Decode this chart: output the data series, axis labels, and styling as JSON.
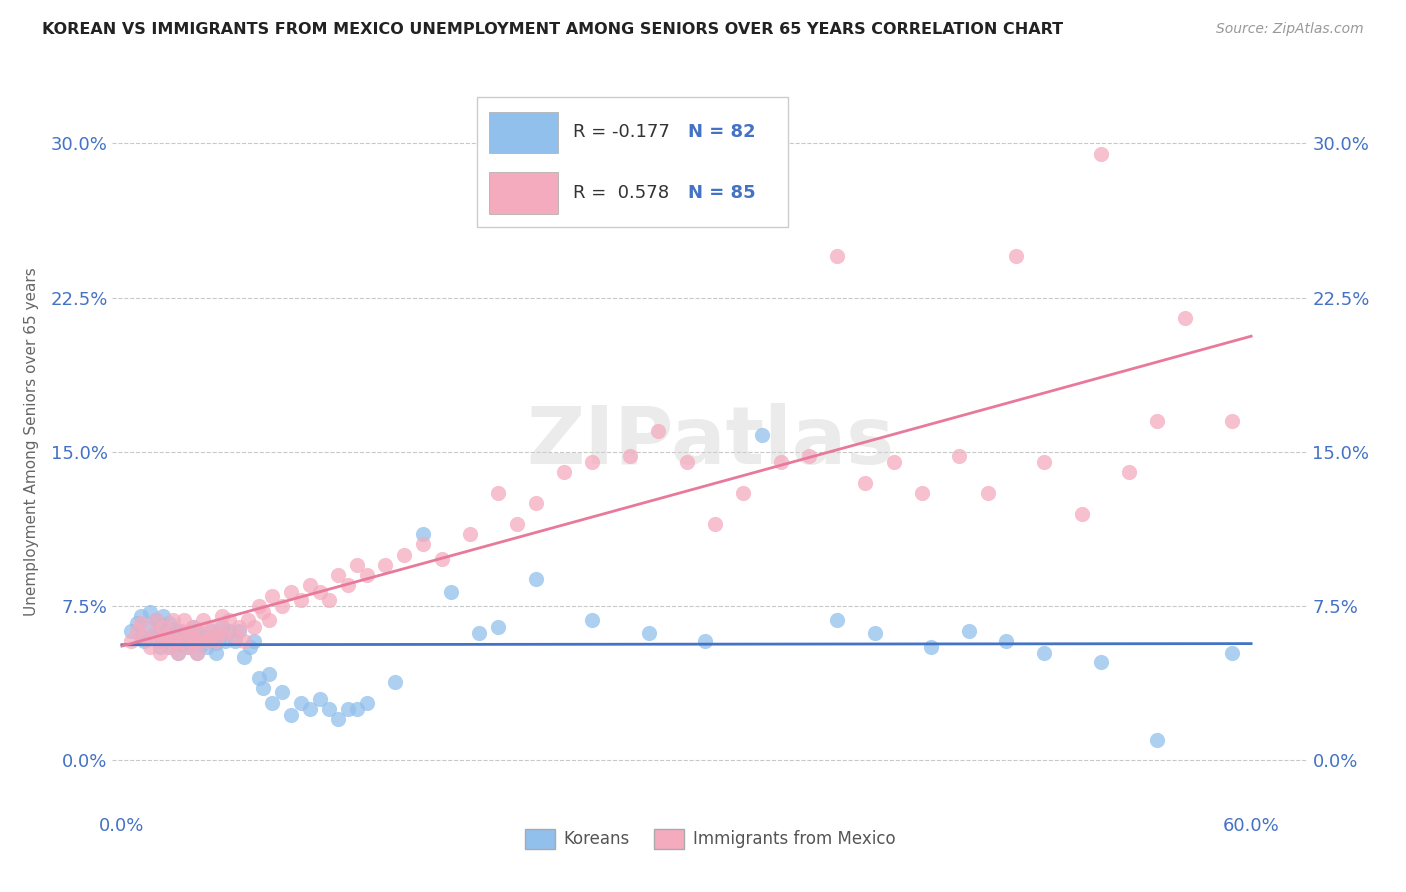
{
  "title": "KOREAN VS IMMIGRANTS FROM MEXICO UNEMPLOYMENT AMONG SENIORS OVER 65 YEARS CORRELATION CHART",
  "source": "Source: ZipAtlas.com",
  "ylabel": "Unemployment Among Seniors over 65 years",
  "xlim": [
    -0.005,
    0.63
  ],
  "ylim": [
    -0.025,
    0.335
  ],
  "yticks": [
    0.0,
    0.075,
    0.15,
    0.225,
    0.3
  ],
  "ytick_labels": [
    "0.0%",
    "7.5%",
    "15.0%",
    "22.5%",
    "30.0%"
  ],
  "xticks": [
    0.0,
    0.1,
    0.2,
    0.3,
    0.4,
    0.5,
    0.6
  ],
  "xtick_labels": [
    "0.0%",
    "",
    "",
    "",
    "",
    "",
    "60.0%"
  ],
  "korean_color": "#92C0EC",
  "mexican_color": "#F4ABBE",
  "korean_line_color": "#4472C4",
  "mexican_line_color": "#E8799A",
  "korean_R": -0.177,
  "korean_N": 82,
  "mexican_R": 0.578,
  "mexican_N": 85,
  "background_color": "#FFFFFF",
  "grid_color": "#BBBBBB",
  "watermark": "ZIPatlas",
  "legend_label_korean": "Koreans",
  "legend_label_mexican": "Immigrants from Mexico",
  "korean_x": [
    0.005,
    0.008,
    0.01,
    0.01,
    0.012,
    0.015,
    0.015,
    0.017,
    0.018,
    0.02,
    0.02,
    0.02,
    0.022,
    0.022,
    0.022,
    0.025,
    0.025,
    0.025,
    0.028,
    0.028,
    0.03,
    0.03,
    0.03,
    0.032,
    0.033,
    0.035,
    0.035,
    0.037,
    0.038,
    0.04,
    0.04,
    0.04,
    0.042,
    0.043,
    0.045,
    0.045,
    0.047,
    0.048,
    0.05,
    0.05,
    0.052,
    0.053,
    0.055,
    0.057,
    0.06,
    0.062,
    0.065,
    0.068,
    0.07,
    0.073,
    0.075,
    0.078,
    0.08,
    0.085,
    0.09,
    0.095,
    0.1,
    0.105,
    0.11,
    0.115,
    0.12,
    0.125,
    0.13,
    0.145,
    0.16,
    0.175,
    0.19,
    0.2,
    0.22,
    0.25,
    0.28,
    0.31,
    0.34,
    0.38,
    0.4,
    0.43,
    0.45,
    0.47,
    0.49,
    0.52,
    0.55,
    0.59
  ],
  "korean_y": [
    0.063,
    0.067,
    0.07,
    0.06,
    0.058,
    0.065,
    0.072,
    0.06,
    0.068,
    0.055,
    0.06,
    0.066,
    0.058,
    0.063,
    0.07,
    0.055,
    0.061,
    0.067,
    0.058,
    0.064,
    0.052,
    0.057,
    0.063,
    0.056,
    0.062,
    0.055,
    0.06,
    0.058,
    0.065,
    0.052,
    0.058,
    0.063,
    0.056,
    0.06,
    0.055,
    0.06,
    0.058,
    0.063,
    0.052,
    0.057,
    0.06,
    0.065,
    0.058,
    0.063,
    0.058,
    0.063,
    0.05,
    0.055,
    0.058,
    0.04,
    0.035,
    0.042,
    0.028,
    0.033,
    0.022,
    0.028,
    0.025,
    0.03,
    0.025,
    0.02,
    0.025,
    0.025,
    0.028,
    0.038,
    0.11,
    0.082,
    0.062,
    0.065,
    0.088,
    0.068,
    0.062,
    0.058,
    0.158,
    0.068,
    0.062,
    0.055,
    0.063,
    0.058,
    0.052,
    0.048,
    0.01,
    0.052
  ],
  "mexican_x": [
    0.005,
    0.008,
    0.01,
    0.012,
    0.015,
    0.017,
    0.018,
    0.02,
    0.02,
    0.022,
    0.022,
    0.025,
    0.025,
    0.027,
    0.028,
    0.03,
    0.03,
    0.032,
    0.033,
    0.035,
    0.035,
    0.037,
    0.038,
    0.04,
    0.04,
    0.042,
    0.043,
    0.045,
    0.047,
    0.048,
    0.05,
    0.052,
    0.053,
    0.055,
    0.057,
    0.06,
    0.062,
    0.065,
    0.067,
    0.07,
    0.073,
    0.075,
    0.078,
    0.08,
    0.085,
    0.09,
    0.095,
    0.1,
    0.105,
    0.11,
    0.115,
    0.12,
    0.125,
    0.13,
    0.14,
    0.15,
    0.16,
    0.17,
    0.185,
    0.2,
    0.21,
    0.22,
    0.235,
    0.25,
    0.27,
    0.285,
    0.3,
    0.315,
    0.33,
    0.35,
    0.365,
    0.38,
    0.395,
    0.41,
    0.425,
    0.445,
    0.46,
    0.475,
    0.49,
    0.51,
    0.52,
    0.535,
    0.55,
    0.565,
    0.59
  ],
  "mexican_y": [
    0.058,
    0.063,
    0.067,
    0.06,
    0.055,
    0.062,
    0.068,
    0.052,
    0.058,
    0.06,
    0.065,
    0.055,
    0.062,
    0.068,
    0.058,
    0.052,
    0.058,
    0.063,
    0.068,
    0.055,
    0.062,
    0.058,
    0.065,
    0.052,
    0.058,
    0.062,
    0.068,
    0.058,
    0.06,
    0.065,
    0.058,
    0.063,
    0.07,
    0.062,
    0.068,
    0.06,
    0.065,
    0.058,
    0.068,
    0.065,
    0.075,
    0.072,
    0.068,
    0.08,
    0.075,
    0.082,
    0.078,
    0.085,
    0.082,
    0.078,
    0.09,
    0.085,
    0.095,
    0.09,
    0.095,
    0.1,
    0.105,
    0.098,
    0.11,
    0.13,
    0.115,
    0.125,
    0.14,
    0.145,
    0.148,
    0.16,
    0.145,
    0.115,
    0.13,
    0.145,
    0.148,
    0.245,
    0.135,
    0.145,
    0.13,
    0.148,
    0.13,
    0.245,
    0.145,
    0.12,
    0.295,
    0.14,
    0.165,
    0.215,
    0.165
  ]
}
